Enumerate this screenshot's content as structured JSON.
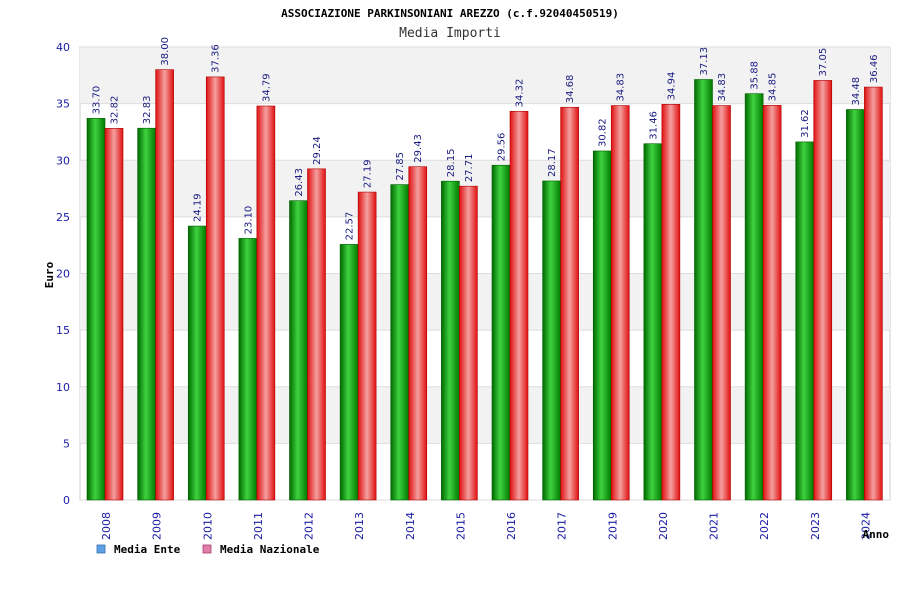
{
  "chart_data": {
    "type": "bar",
    "title": "ASSOCIAZIONE PARKINSONIANI AREZZO (c.f.92040450519)",
    "subtitle": "Media Importi",
    "ylabel": "Euro",
    "xlabel": "Anno",
    "ylim": [
      0,
      40
    ],
    "yticks": [
      0,
      5,
      10,
      15,
      20,
      25,
      30,
      35,
      40
    ],
    "grid": true,
    "legend": "bottom-left",
    "categories": [
      "2008",
      "2009",
      "2010",
      "2011",
      "2012",
      "2013",
      "2014",
      "2015",
      "2016",
      "2017",
      "2019",
      "2020",
      "2021",
      "2022",
      "2023",
      "2024"
    ],
    "series": [
      {
        "name": "Media Ente",
        "color": "#00b000",
        "legend_color": "#5aa0e6",
        "values": [
          33.7,
          32.83,
          24.19,
          23.1,
          26.43,
          22.57,
          27.85,
          28.15,
          29.56,
          28.17,
          30.82,
          31.46,
          37.13,
          35.88,
          31.62,
          34.48
        ],
        "labels": [
          "33.70",
          "32.83",
          "24.19",
          "23.10",
          "26.43",
          "22.57",
          "27.85",
          "28.15",
          "29.56",
          "28.17",
          "30.82",
          "31.46",
          "37.13",
          "35.88",
          "31.62",
          "34.48"
        ]
      },
      {
        "name": "Media Nazionale",
        "color": "#e01010",
        "legend_color": "#e07fa8",
        "values": [
          32.82,
          38.0,
          37.36,
          34.79,
          29.24,
          27.19,
          29.43,
          27.71,
          34.32,
          34.68,
          34.83,
          34.94,
          34.83,
          34.85,
          37.05,
          36.46
        ],
        "labels": [
          "32.82",
          "38.00",
          "37.36",
          "34.79",
          "29.24",
          "27.19",
          "29.43",
          "27.71",
          "34.32",
          "34.68",
          "34.83",
          "34.94",
          "34.83",
          "34.85",
          "37.05",
          "36.46"
        ]
      }
    ]
  }
}
